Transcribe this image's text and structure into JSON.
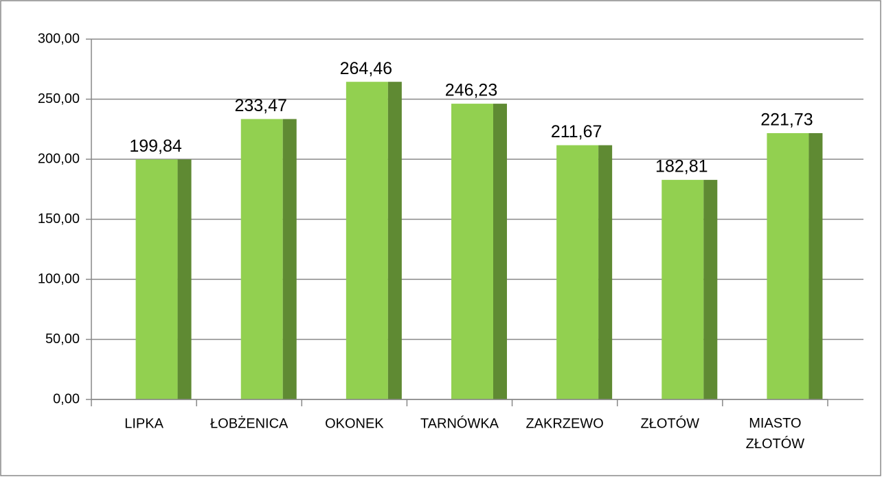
{
  "chart_data": {
    "type": "bar",
    "categories": [
      "LIPKA",
      "ŁOBŻENICA",
      "OKONEK",
      "TARNÓWKA",
      "ZAKRZEWO",
      "ZŁOTÓW",
      "MIASTO ZŁOTÓW"
    ],
    "values": [
      199.84,
      233.47,
      264.46,
      246.23,
      211.67,
      182.81,
      221.73
    ],
    "value_labels": [
      "199,84",
      "233,47",
      "264,46",
      "246,23",
      "211,67",
      "182,81",
      "221,73"
    ],
    "color": "#92d050",
    "side_color": "#5f8a33",
    "ylim": [
      0,
      300
    ],
    "yticks": [
      {
        "value": 0,
        "label": "0,00"
      },
      {
        "value": 50,
        "label": "50,00"
      },
      {
        "value": 100,
        "label": "100,00"
      },
      {
        "value": 150,
        "label": "150,00"
      },
      {
        "value": 200,
        "label": "200,00"
      },
      {
        "value": 250,
        "label": "250,00"
      },
      {
        "value": 300,
        "label": "300,00"
      }
    ],
    "grid": true
  }
}
